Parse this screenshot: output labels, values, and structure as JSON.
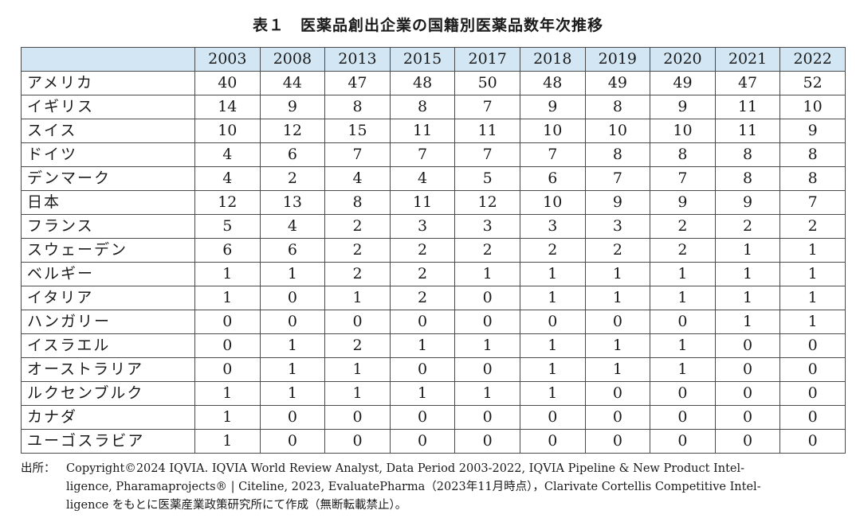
{
  "title": "表１　医薬品創出企業の国籍別医薬品数年次推移",
  "table": {
    "corner": "",
    "years": [
      "2003",
      "2008",
      "2013",
      "2015",
      "2017",
      "2018",
      "2019",
      "2020",
      "2021",
      "2022"
    ],
    "rows": [
      {
        "country": "アメリカ",
        "values": [
          "40",
          "44",
          "47",
          "48",
          "50",
          "48",
          "49",
          "49",
          "47",
          "52"
        ]
      },
      {
        "country": "イギリス",
        "values": [
          "14",
          "9",
          "8",
          "8",
          "7",
          "9",
          "8",
          "9",
          "11",
          "10"
        ]
      },
      {
        "country": "スイス",
        "values": [
          "10",
          "12",
          "15",
          "11",
          "11",
          "10",
          "10",
          "10",
          "11",
          "9"
        ]
      },
      {
        "country": "ドイツ",
        "values": [
          "4",
          "6",
          "7",
          "7",
          "7",
          "7",
          "8",
          "8",
          "8",
          "8"
        ]
      },
      {
        "country": "デンマーク",
        "values": [
          "4",
          "2",
          "4",
          "4",
          "5",
          "6",
          "7",
          "7",
          "8",
          "8"
        ]
      },
      {
        "country": "日本",
        "values": [
          "12",
          "13",
          "8",
          "11",
          "12",
          "10",
          "9",
          "9",
          "9",
          "7"
        ]
      },
      {
        "country": "フランス",
        "values": [
          "5",
          "4",
          "2",
          "3",
          "3",
          "3",
          "3",
          "2",
          "2",
          "2"
        ]
      },
      {
        "country": "スウェーデン",
        "values": [
          "6",
          "6",
          "2",
          "2",
          "2",
          "2",
          "2",
          "2",
          "1",
          "1"
        ]
      },
      {
        "country": "ベルギー",
        "values": [
          "1",
          "1",
          "2",
          "2",
          "1",
          "1",
          "1",
          "1",
          "1",
          "1"
        ]
      },
      {
        "country": "イタリア",
        "values": [
          "1",
          "0",
          "1",
          "2",
          "0",
          "1",
          "1",
          "1",
          "1",
          "1"
        ]
      },
      {
        "country": "ハンガリー",
        "values": [
          "0",
          "0",
          "0",
          "0",
          "0",
          "0",
          "0",
          "0",
          "1",
          "1"
        ]
      },
      {
        "country": "イスラエル",
        "values": [
          "0",
          "1",
          "2",
          "1",
          "1",
          "1",
          "1",
          "1",
          "0",
          "0"
        ]
      },
      {
        "country": "オーストラリア",
        "values": [
          "0",
          "1",
          "1",
          "0",
          "0",
          "1",
          "1",
          "1",
          "0",
          "0"
        ]
      },
      {
        "country": "ルクセンブルク",
        "values": [
          "1",
          "1",
          "1",
          "1",
          "1",
          "1",
          "0",
          "0",
          "0",
          "0"
        ]
      },
      {
        "country": "カナダ",
        "values": [
          "1",
          "0",
          "0",
          "0",
          "0",
          "0",
          "0",
          "0",
          "0",
          "0"
        ]
      },
      {
        "country": "ユーゴスラビア",
        "values": [
          "1",
          "0",
          "0",
          "0",
          "0",
          "0",
          "0",
          "0",
          "0",
          "0"
        ]
      }
    ]
  },
  "source": {
    "label": "出所：",
    "line1": "Copyright©2024 IQVIA. IQVIA World Review Analyst, Data Period 2003-2022, IQVIA Pipeline & New Product Intel-",
    "line2": "ligence, Pharamaprojects® | Citeline, 2023, EvaluatePharma（2023年11月時点），Clarivate Cortellis Competitive Intel-",
    "line3": "ligence をもとに医薬産業政策研究所にて作成（無断転載禁止）。"
  }
}
